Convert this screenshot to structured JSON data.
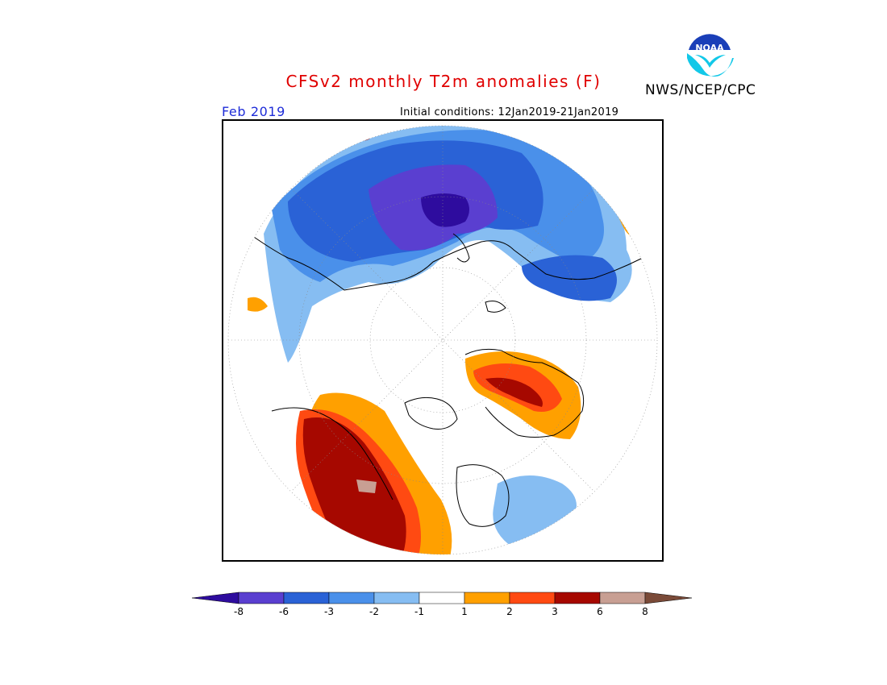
{
  "title": "CFSv2 monthly T2m anomalies (F)",
  "agency": "NWS/NCEP/CPC",
  "logo_text": "NOAA",
  "period": "Feb 2019",
  "initial_conditions": "Initial conditions: 12Jan2019-21Jan2019",
  "colorbar": {
    "ticks": [
      "-8",
      "-6",
      "-3",
      "-2",
      "-1",
      "1",
      "2",
      "3",
      "6",
      "8"
    ],
    "colors": [
      "#2e0c9e",
      "#5a3fd0",
      "#2a62d6",
      "#4a90ea",
      "#86bdf2",
      "#ffffff",
      "#ffa000",
      "#ff4a12",
      "#a60800",
      "#c89f93",
      "#7a4a38"
    ]
  },
  "map_colors": {
    "very_cold": "#2e0c9e",
    "cold_purple": "#5a3fd0",
    "blue": "#2a62d6",
    "mid_blue": "#4a90ea",
    "light_blue": "#86bdf2",
    "orange": "#ffa000",
    "red_orange": "#ff4a12",
    "dark_red": "#a60800",
    "tan": "#c89f93"
  }
}
